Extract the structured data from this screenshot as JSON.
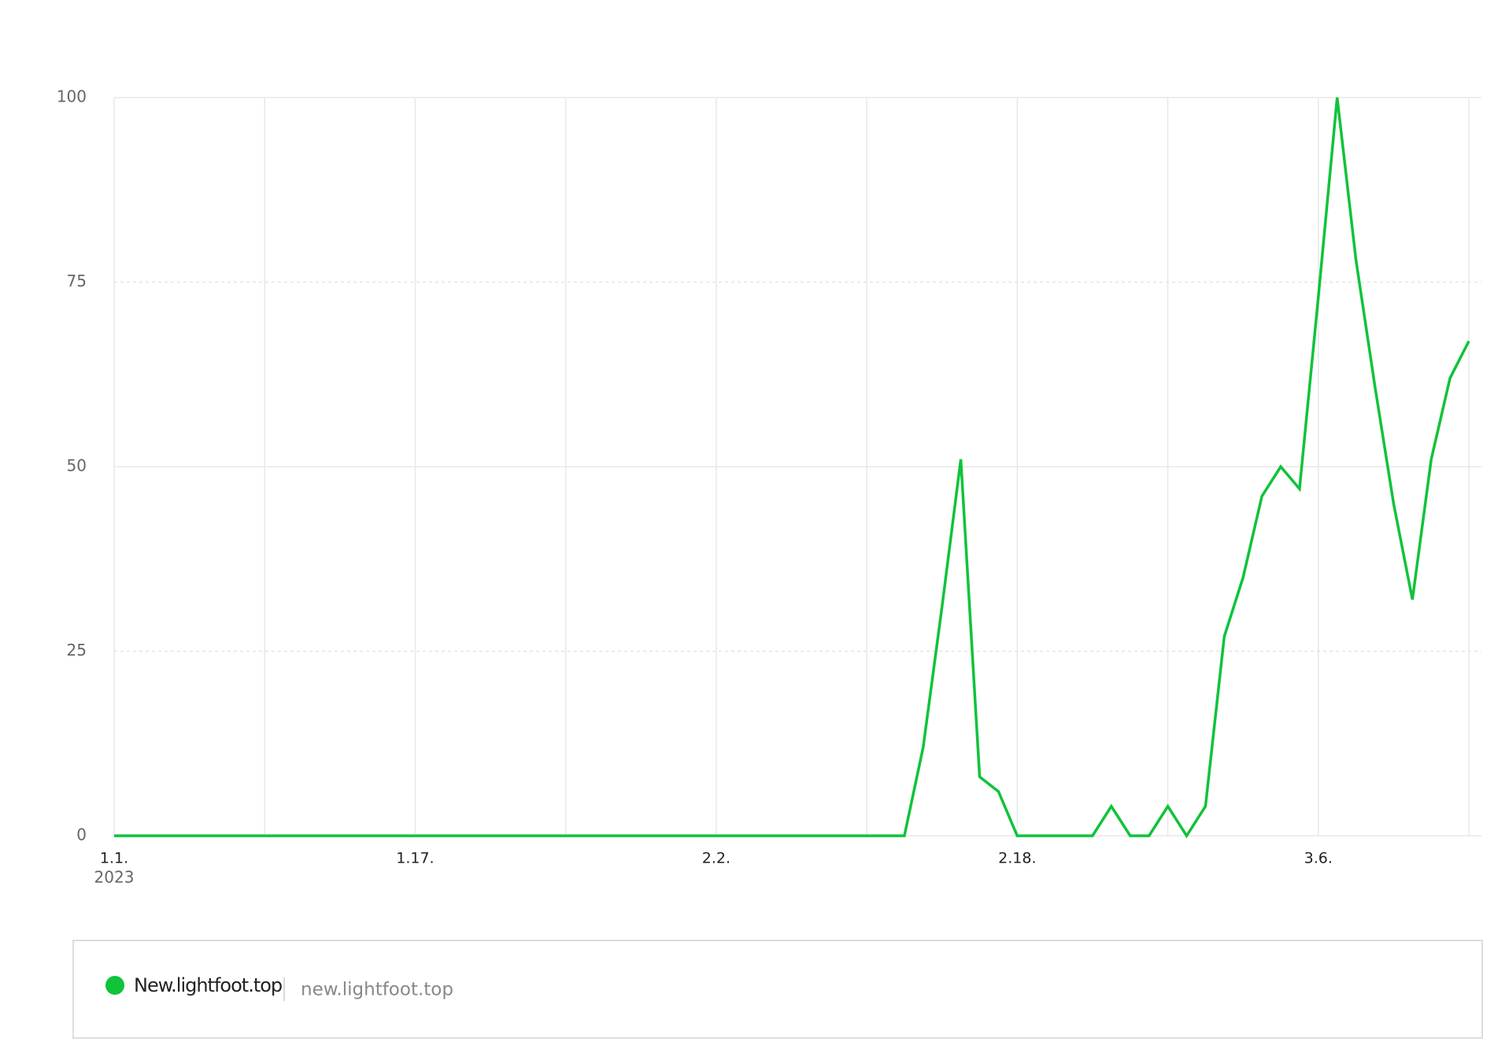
{
  "chart_data": {
    "type": "line",
    "x": [
      "1.1.",
      null,
      null,
      null,
      null,
      null,
      null,
      null,
      null,
      null,
      null,
      null,
      null,
      null,
      null,
      null,
      "1.17.",
      null,
      null,
      null,
      null,
      null,
      null,
      null,
      null,
      null,
      null,
      null,
      null,
      null,
      null,
      null,
      "2.2.",
      null,
      null,
      null,
      null,
      null,
      null,
      null,
      null,
      null,
      null,
      null,
      null,
      null,
      null,
      null,
      "2.18.",
      null,
      null,
      null,
      null,
      null,
      null,
      null,
      null,
      null,
      null,
      null,
      null,
      null,
      null,
      null,
      "3.6.",
      null,
      null,
      null,
      null,
      null,
      null,
      null,
      null
    ],
    "year_label": "2023",
    "series": [
      {
        "name": "New.lightfoot.top",
        "subtext": "new.lightfoot.top",
        "color": "#0fc33a",
        "values": [
          0,
          0,
          0,
          0,
          0,
          0,
          0,
          0,
          0,
          0,
          0,
          0,
          0,
          0,
          0,
          0,
          0,
          0,
          0,
          0,
          0,
          0,
          0,
          0,
          0,
          0,
          0,
          0,
          0,
          0,
          0,
          0,
          0,
          0,
          0,
          0,
          0,
          0,
          0,
          0,
          0,
          0,
          0,
          12,
          31,
          51,
          8,
          6,
          0,
          0,
          0,
          0,
          0,
          4,
          0,
          0,
          4,
          0,
          4,
          27,
          35,
          46,
          50,
          47,
          73,
          100,
          78,
          61,
          45,
          32,
          51,
          62,
          67
        ]
      }
    ],
    "ylim": [
      0,
      100
    ],
    "yticks": [
      0,
      25,
      50,
      75,
      100
    ],
    "grid": true
  }
}
